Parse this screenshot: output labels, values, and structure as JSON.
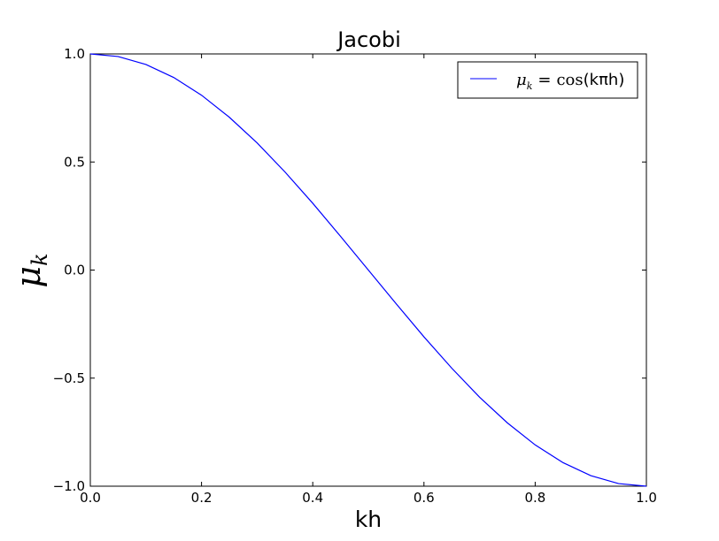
{
  "chart_data": {
    "type": "line",
    "title": "Jacobi",
    "xlabel": "kh",
    "ylabel": "μ",
    "ylabel_subscript": "k",
    "xlim": [
      0.0,
      1.0
    ],
    "ylim": [
      -1.0,
      1.0
    ],
    "x_ticks": [
      0.0,
      0.2,
      0.4,
      0.6,
      0.8,
      1.0
    ],
    "y_ticks": [
      1.0,
      0.5,
      0.0,
      -0.5,
      -1.0
    ],
    "x_tick_labels": [
      "0.0",
      "0.2",
      "0.4",
      "0.6",
      "0.8",
      "1.0"
    ],
    "y_tick_labels": [
      "1.0",
      "0.5",
      "0.0",
      "−0.5",
      "−1.0"
    ],
    "grid": false,
    "legend_position": "top-right",
    "legend": {
      "symbol": "μ",
      "symbol_subscript": "k",
      "equals": "=",
      "func": "cos",
      "arg": "(kπh)"
    },
    "series": [
      {
        "color": "#0000ff",
        "x": [
          0.0,
          0.05,
          0.1,
          0.15,
          0.2,
          0.25,
          0.3,
          0.35,
          0.4,
          0.45,
          0.5,
          0.55,
          0.6,
          0.65,
          0.7,
          0.75,
          0.8,
          0.85,
          0.9,
          0.95,
          1.0
        ],
        "y": [
          1.0,
          0.988,
          0.951,
          0.891,
          0.809,
          0.707,
          0.588,
          0.454,
          0.309,
          0.156,
          0.0,
          -0.156,
          -0.309,
          -0.454,
          -0.588,
          -0.707,
          -0.809,
          -0.891,
          -0.951,
          -0.988,
          -1.0
        ]
      }
    ]
  }
}
